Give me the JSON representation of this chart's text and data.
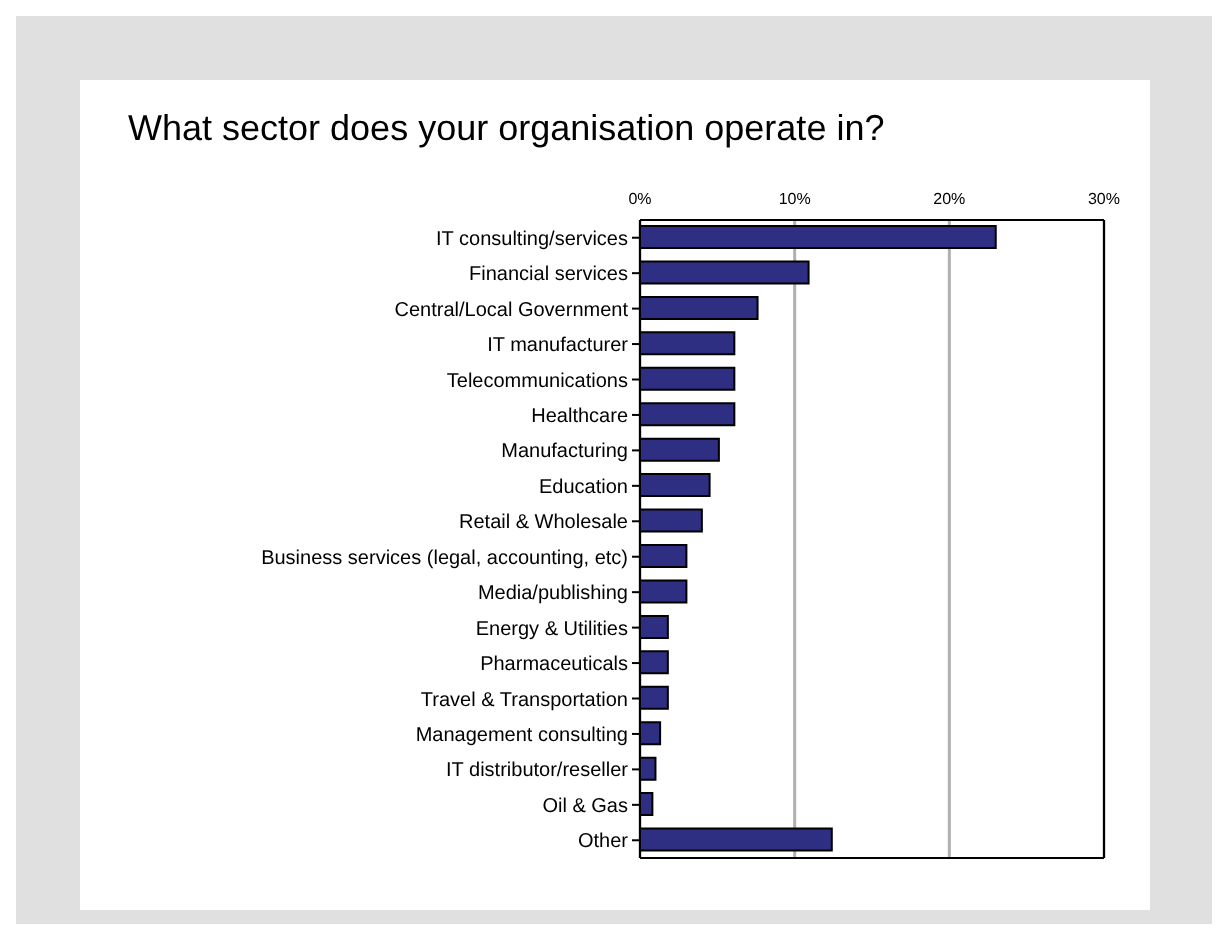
{
  "chart_data": {
    "type": "bar",
    "orientation": "horizontal",
    "title": "What sector does your organisation operate in?",
    "categories": [
      "IT consulting/services",
      "Financial services",
      "Central/Local Government",
      "IT manufacturer",
      "Telecommunications",
      "Healthcare",
      "Manufacturing",
      "Education",
      "Retail & Wholesale",
      "Business services (legal, accounting, etc)",
      "Media/publishing",
      "Energy & Utilities",
      "Pharmaceuticals",
      "Travel & Transportation",
      "Management consulting",
      "IT distributor/reseller",
      "Oil & Gas",
      "Other"
    ],
    "values": [
      23.0,
      10.9,
      7.6,
      6.1,
      6.1,
      6.1,
      5.1,
      4.5,
      4.0,
      3.0,
      3.0,
      1.8,
      1.8,
      1.8,
      1.3,
      1.0,
      0.8,
      12.4
    ],
    "color": "#2e2e82",
    "xlim": [
      0,
      30
    ],
    "xticks": [
      {
        "value": 0,
        "label": "0%"
      },
      {
        "value": 10,
        "label": "10%"
      },
      {
        "value": 20,
        "label": "20%"
      },
      {
        "value": 30,
        "label": "30%"
      }
    ],
    "grid": "x"
  }
}
